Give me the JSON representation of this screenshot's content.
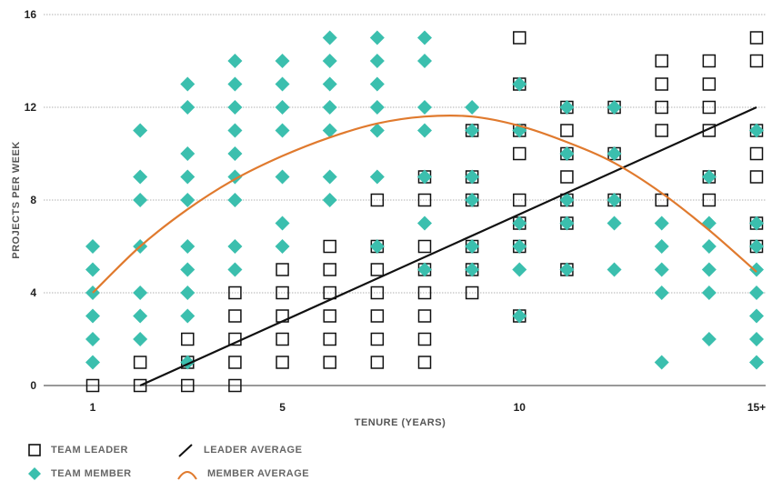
{
  "chart_data": {
    "type": "scatter",
    "title": "",
    "xlabel": "TENURE (YEARS)",
    "ylabel": "PROJECTS PER WEEK",
    "xlim": [
      0,
      15.3
    ],
    "ylim": [
      0,
      16
    ],
    "x_ticks": [
      1,
      5,
      10,
      15
    ],
    "x_tick_labels": [
      "1",
      "5",
      "10",
      "15+"
    ],
    "y_ticks": [
      0,
      4,
      8,
      12,
      16
    ],
    "y_tick_labels": [
      "0",
      "4",
      "8",
      "12",
      "16"
    ],
    "grid": "horizontal dotted",
    "legend_position": "bottom-left",
    "colors": {
      "leader": "#111111",
      "member": "#3bbfae",
      "member_average": "#e07a2e",
      "leader_average": "#111111"
    },
    "series": [
      {
        "name": "TEAM LEADER",
        "marker": "hollow-square",
        "points": [
          [
            1,
            0
          ],
          [
            2,
            0
          ],
          [
            2,
            1
          ],
          [
            3,
            0
          ],
          [
            3,
            1
          ],
          [
            3,
            2
          ],
          [
            4,
            0
          ],
          [
            4,
            1
          ],
          [
            4,
            2
          ],
          [
            4,
            3
          ],
          [
            4,
            4
          ],
          [
            5,
            1
          ],
          [
            5,
            2
          ],
          [
            5,
            3
          ],
          [
            5,
            4
          ],
          [
            5,
            5
          ],
          [
            6,
            1
          ],
          [
            6,
            2
          ],
          [
            6,
            3
          ],
          [
            6,
            4
          ],
          [
            6,
            5
          ],
          [
            6,
            6
          ],
          [
            7,
            1
          ],
          [
            7,
            2
          ],
          [
            7,
            3
          ],
          [
            7,
            4
          ],
          [
            7,
            5
          ],
          [
            7,
            6
          ],
          [
            7,
            8
          ],
          [
            8,
            1
          ],
          [
            8,
            2
          ],
          [
            8,
            3
          ],
          [
            8,
            4
          ],
          [
            8,
            5
          ],
          [
            8,
            6
          ],
          [
            8,
            8
          ],
          [
            8,
            9
          ],
          [
            9,
            4
          ],
          [
            9,
            5
          ],
          [
            9,
            6
          ],
          [
            9,
            8
          ],
          [
            9,
            9
          ],
          [
            9,
            11
          ],
          [
            10,
            3
          ],
          [
            10,
            6
          ],
          [
            10,
            7
          ],
          [
            10,
            8
          ],
          [
            10,
            10
          ],
          [
            10,
            11
          ],
          [
            10,
            13
          ],
          [
            10,
            15
          ],
          [
            11,
            5
          ],
          [
            11,
            7
          ],
          [
            11,
            8
          ],
          [
            11,
            9
          ],
          [
            11,
            10
          ],
          [
            11,
            11
          ],
          [
            11,
            12
          ],
          [
            12,
            8
          ],
          [
            12,
            10
          ],
          [
            12,
            12
          ],
          [
            13,
            8
          ],
          [
            13,
            11
          ],
          [
            13,
            12
          ],
          [
            13,
            13
          ],
          [
            13,
            14
          ],
          [
            14,
            8
          ],
          [
            14,
            9
          ],
          [
            14,
            11
          ],
          [
            14,
            12
          ],
          [
            14,
            13
          ],
          [
            14,
            14
          ],
          [
            15,
            6
          ],
          [
            15,
            7
          ],
          [
            15,
            9
          ],
          [
            15,
            10
          ],
          [
            15,
            11
          ],
          [
            15,
            14
          ],
          [
            15,
            15
          ]
        ]
      },
      {
        "name": "TEAM MEMBER",
        "marker": "diamond",
        "points": [
          [
            1,
            1
          ],
          [
            1,
            2
          ],
          [
            1,
            3
          ],
          [
            1,
            4
          ],
          [
            1,
            5
          ],
          [
            1,
            6
          ],
          [
            2,
            2
          ],
          [
            2,
            3
          ],
          [
            2,
            4
          ],
          [
            2,
            6
          ],
          [
            2,
            8
          ],
          [
            2,
            9
          ],
          [
            2,
            11
          ],
          [
            3,
            1
          ],
          [
            3,
            3
          ],
          [
            3,
            4
          ],
          [
            3,
            5
          ],
          [
            3,
            6
          ],
          [
            3,
            8
          ],
          [
            3,
            9
          ],
          [
            3,
            10
          ],
          [
            3,
            12
          ],
          [
            3,
            13
          ],
          [
            4,
            5
          ],
          [
            4,
            6
          ],
          [
            4,
            8
          ],
          [
            4,
            9
          ],
          [
            4,
            10
          ],
          [
            4,
            11
          ],
          [
            4,
            12
          ],
          [
            4,
            13
          ],
          [
            4,
            14
          ],
          [
            5,
            6
          ],
          [
            5,
            7
          ],
          [
            5,
            9
          ],
          [
            5,
            11
          ],
          [
            5,
            12
          ],
          [
            5,
            13
          ],
          [
            5,
            14
          ],
          [
            6,
            8
          ],
          [
            6,
            9
          ],
          [
            6,
            11
          ],
          [
            6,
            12
          ],
          [
            6,
            13
          ],
          [
            6,
            14
          ],
          [
            6,
            15
          ],
          [
            7,
            6
          ],
          [
            7,
            9
          ],
          [
            7,
            11
          ],
          [
            7,
            12
          ],
          [
            7,
            13
          ],
          [
            7,
            14
          ],
          [
            7,
            15
          ],
          [
            8,
            5
          ],
          [
            8,
            7
          ],
          [
            8,
            9
          ],
          [
            8,
            11
          ],
          [
            8,
            12
          ],
          [
            8,
            14
          ],
          [
            8,
            15
          ],
          [
            9,
            5
          ],
          [
            9,
            6
          ],
          [
            9,
            8
          ],
          [
            9,
            9
          ],
          [
            9,
            11
          ],
          [
            9,
            12
          ],
          [
            10,
            3
          ],
          [
            10,
            5
          ],
          [
            10,
            6
          ],
          [
            10,
            7
          ],
          [
            10,
            11
          ],
          [
            10,
            13
          ],
          [
            11,
            5
          ],
          [
            11,
            7
          ],
          [
            11,
            8
          ],
          [
            11,
            10
          ],
          [
            11,
            12
          ],
          [
            12,
            5
          ],
          [
            12,
            7
          ],
          [
            12,
            8
          ],
          [
            12,
            10
          ],
          [
            12,
            12
          ],
          [
            13,
            1
          ],
          [
            13,
            4
          ],
          [
            13,
            5
          ],
          [
            13,
            6
          ],
          [
            13,
            7
          ],
          [
            14,
            2
          ],
          [
            14,
            4
          ],
          [
            14,
            5
          ],
          [
            14,
            6
          ],
          [
            14,
            7
          ],
          [
            14,
            9
          ],
          [
            15,
            1
          ],
          [
            15,
            2
          ],
          [
            15,
            3
          ],
          [
            15,
            4
          ],
          [
            15,
            5
          ],
          [
            15,
            6
          ],
          [
            15,
            7
          ],
          [
            15,
            11
          ]
        ]
      },
      {
        "name": "LEADER AVERAGE",
        "type": "line",
        "points": [
          [
            2,
            0
          ],
          [
            15,
            12
          ]
        ]
      },
      {
        "name": "MEMBER AVERAGE",
        "type": "line",
        "points": [
          [
            1,
            4
          ],
          [
            2,
            6
          ],
          [
            3,
            7.6
          ],
          [
            4,
            8.9
          ],
          [
            5,
            9.9
          ],
          [
            6,
            10.7
          ],
          [
            7,
            11.3
          ],
          [
            8,
            11.6
          ],
          [
            9,
            11.6
          ],
          [
            10,
            11.2
          ],
          [
            11,
            10.5
          ],
          [
            12,
            9.6
          ],
          [
            13,
            8.3
          ],
          [
            14,
            6.7
          ],
          [
            15,
            4.9
          ]
        ]
      }
    ]
  },
  "legend": {
    "leader": "TEAM LEADER",
    "member": "TEAM MEMBER",
    "leader_average": "LEADER AVERAGE",
    "member_average": "MEMBER AVERAGE"
  }
}
